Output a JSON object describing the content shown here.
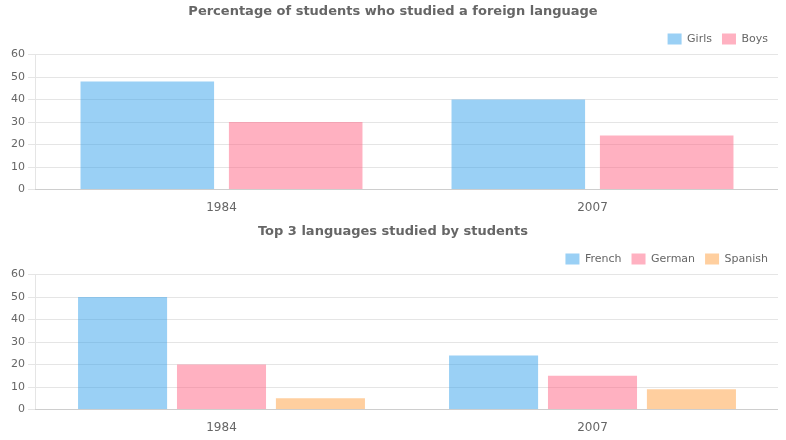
{
  "chart_data": [
    {
      "type": "bar",
      "title": "Percentage of students who studied a foreign language",
      "categories": [
        "1984",
        "2007"
      ],
      "series": [
        {
          "name": "Girls",
          "values": [
            48,
            40
          ]
        },
        {
          "name": "Boys",
          "values": [
            30,
            24
          ]
        }
      ],
      "ylim": [
        0,
        60
      ],
      "yticks": [
        0,
        10,
        20,
        30,
        40,
        50,
        60
      ],
      "grid": true,
      "legend": "upper right"
    },
    {
      "type": "bar",
      "title": "Top 3 languages studied by students",
      "categories": [
        "1984",
        "2007"
      ],
      "series": [
        {
          "name": "French",
          "values": [
            50,
            24
          ]
        },
        {
          "name": "German",
          "values": [
            20,
            15
          ]
        },
        {
          "name": "Spanish",
          "values": [
            5,
            9
          ]
        }
      ],
      "ylim": [
        0,
        60
      ],
      "yticks": [
        0,
        10,
        20,
        30,
        40,
        50,
        60
      ],
      "grid": true,
      "legend": "upper right"
    }
  ]
}
